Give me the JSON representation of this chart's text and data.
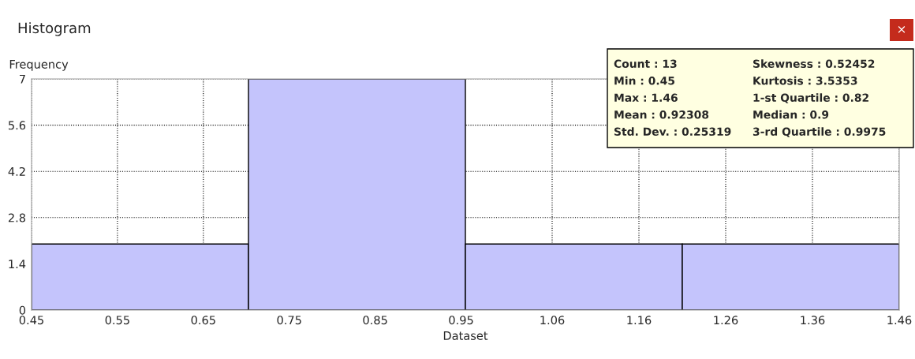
{
  "chart_data": {
    "type": "histogram",
    "title": "Histogram",
    "xlabel": "Dataset",
    "ylabel": "Frequency",
    "bins": [
      0.45,
      0.7025,
      0.955,
      1.2075,
      1.46
    ],
    "values": [
      2,
      7,
      2,
      2
    ],
    "color": "#c4c4fc",
    "xlim": [
      0.45,
      1.46
    ],
    "xticks": [
      0.45,
      0.55,
      0.65,
      0.75,
      0.85,
      0.95,
      {
        "value": 1.056,
        "label": "1.06"
      },
      {
        "value": 1.157,
        "label": "1.16"
      },
      {
        "value": 1.258,
        "label": "1.26"
      },
      {
        "value": 1.359,
        "label": "1.36"
      },
      1.46
    ],
    "ylim": [
      0,
      7
    ],
    "yticks": [
      0,
      1.4,
      2.8,
      4.2,
      5.6,
      7
    ],
    "grid": true,
    "line_style": "dotted",
    "annotations": [
      "Count : 13",
      "Min : 0.45",
      "Max : 1.46",
      "Mean : 0.92308",
      "Std. Dev. : 0.25319",
      "Skewness : 0.52452",
      "Kurtosis : 3.5353",
      "1-st Quartile : 0.82",
      "Median : 0.9",
      "3-rd Quartile : 0.9975",
      "×"
    ]
  }
}
